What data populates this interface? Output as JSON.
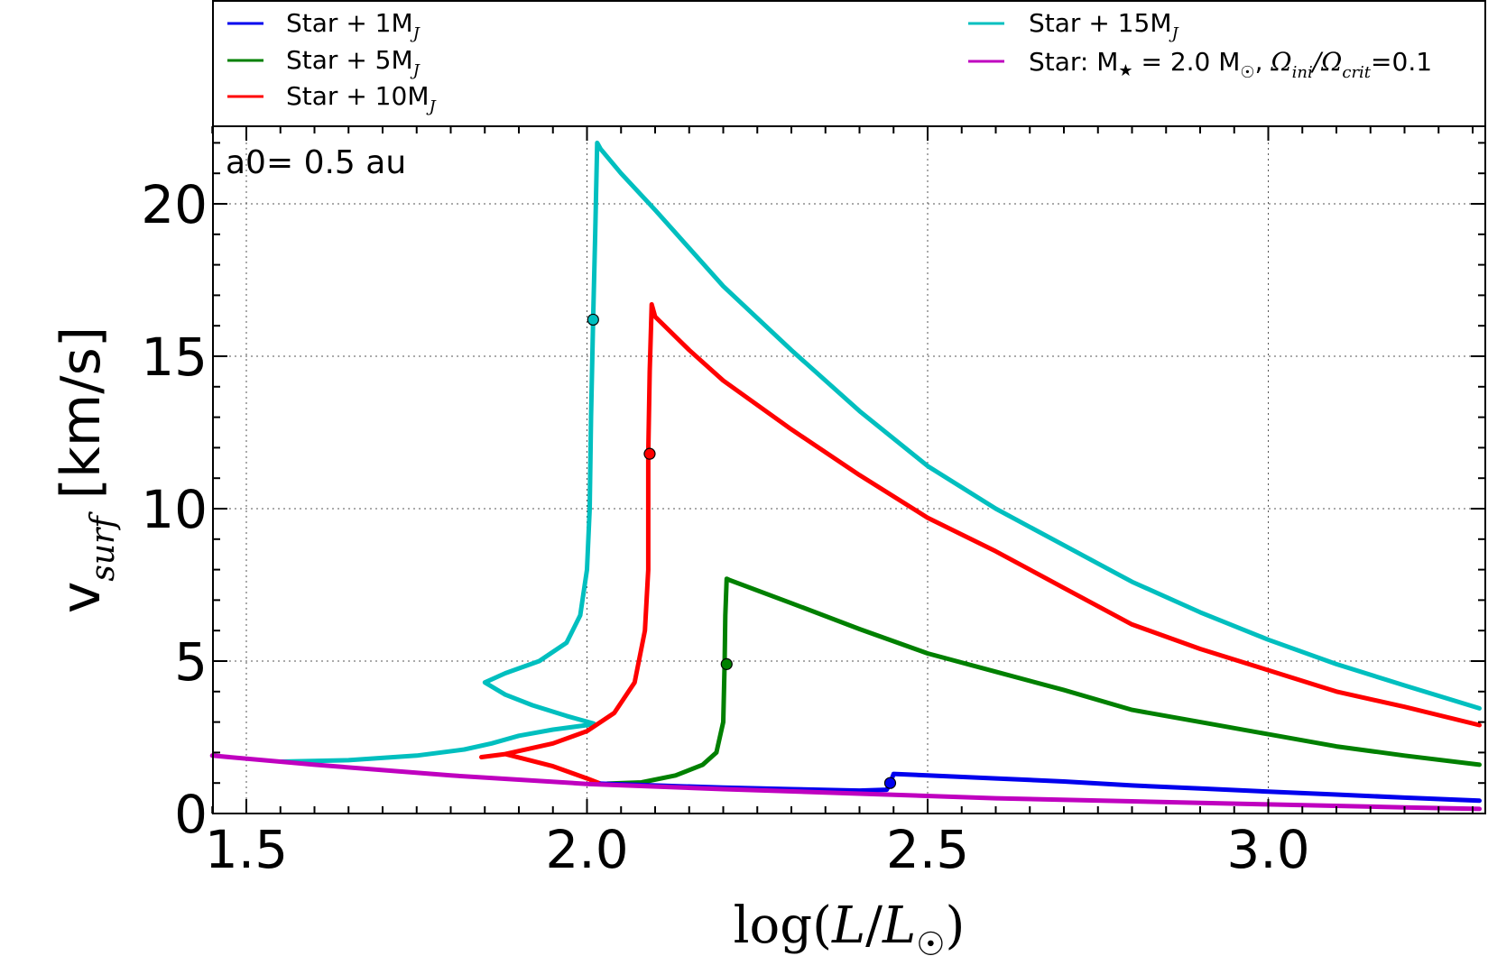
{
  "chart_data": {
    "type": "line",
    "annotation": "a0= 0.5 au",
    "xlabel": "log(L/L☉)",
    "ylabel": "v_surf [km/s]",
    "xlim": [
      1.45,
      3.33
    ],
    "ylim": [
      0,
      22.3
    ],
    "grid": true,
    "legend_position": "top",
    "x_ticks": [
      1.5,
      2.0,
      2.5,
      3.0
    ],
    "x_tick_labels": [
      "1.5",
      "2.0",
      "2.5",
      "3.0"
    ],
    "y_ticks": [
      0,
      5,
      10,
      15,
      20
    ],
    "y_tick_labels": [
      "0",
      "5",
      "10",
      "15",
      "20"
    ],
    "series": [
      {
        "name": "Star + 1M_J",
        "label": "Star + 1M",
        "label_sub": "J",
        "color": "#0000ee",
        "x": [
          2.02,
          2.1,
          2.2,
          2.3,
          2.4,
          2.44,
          2.445,
          2.45,
          2.5,
          2.6,
          2.7,
          2.8,
          2.9,
          3.0,
          3.1,
          3.2,
          3.31
        ],
        "y": [
          0.98,
          0.92,
          0.85,
          0.8,
          0.75,
          0.78,
          1.0,
          1.3,
          1.25,
          1.15,
          1.05,
          0.92,
          0.82,
          0.72,
          0.62,
          0.52,
          0.42
        ],
        "markers": [
          {
            "x": 2.445,
            "y": 1.0
          }
        ]
      },
      {
        "name": "Star + 5M_J",
        "label": "Star + 5M",
        "label_sub": "J",
        "color": "#008000",
        "x": [
          2.03,
          2.08,
          2.13,
          2.17,
          2.19,
          2.2,
          2.202,
          2.203,
          2.205,
          2.21,
          2.3,
          2.4,
          2.5,
          2.6,
          2.7,
          2.8,
          2.9,
          3.0,
          3.1,
          3.2,
          3.31
        ],
        "y": [
          0.98,
          1.02,
          1.25,
          1.6,
          2.0,
          3.0,
          4.9,
          6.5,
          7.7,
          7.65,
          6.9,
          6.05,
          5.25,
          4.65,
          4.05,
          3.4,
          3.0,
          2.6,
          2.2,
          1.9,
          1.6
        ],
        "markers": [
          {
            "x": 2.205,
            "y": 4.9
          }
        ]
      },
      {
        "name": "Star + 10M_J",
        "label": "Star + 10M",
        "label_sub": "J",
        "color": "#ff0000",
        "x": [
          2.02,
          2.0,
          1.95,
          1.88,
          1.845,
          1.88,
          1.95,
          2.0,
          2.04,
          2.07,
          2.085,
          2.09,
          2.09,
          2.092,
          2.095,
          2.1,
          2.15,
          2.2,
          2.3,
          2.4,
          2.5,
          2.6,
          2.7,
          2.8,
          2.9,
          3.0,
          3.1,
          3.2,
          3.31
        ],
        "y": [
          0.98,
          1.15,
          1.55,
          1.95,
          1.85,
          1.95,
          2.3,
          2.7,
          3.3,
          4.3,
          6.0,
          8.0,
          11.8,
          14.5,
          16.7,
          16.3,
          15.2,
          14.2,
          12.6,
          11.1,
          9.7,
          8.6,
          7.4,
          6.2,
          5.4,
          4.7,
          4.0,
          3.5,
          2.9
        ],
        "markers": [
          {
            "x": 2.092,
            "y": 11.8
          }
        ]
      },
      {
        "name": "Star + 15M_J",
        "label": "Star + 15M",
        "label_sub": "J",
        "color": "#00bfbf",
        "x": [
          1.55,
          1.65,
          1.75,
          1.82,
          1.86,
          1.9,
          1.95,
          2.0,
          2.01,
          1.97,
          1.92,
          1.88,
          1.85,
          1.88,
          1.93,
          1.97,
          1.99,
          2.0,
          2.004,
          2.006,
          2.009,
          2.012,
          2.015,
          2.02,
          2.05,
          2.1,
          2.2,
          2.3,
          2.4,
          2.5,
          2.6,
          2.7,
          2.8,
          2.9,
          3.0,
          3.1,
          3.2,
          3.31
        ],
        "y": [
          1.7,
          1.75,
          1.9,
          2.1,
          2.3,
          2.55,
          2.75,
          2.9,
          2.95,
          3.2,
          3.55,
          3.9,
          4.3,
          4.6,
          5.0,
          5.6,
          6.5,
          8.0,
          10.0,
          13.0,
          16.2,
          19.0,
          22.0,
          21.8,
          21.0,
          19.8,
          17.3,
          15.2,
          13.2,
          11.4,
          10.0,
          8.8,
          7.6,
          6.6,
          5.7,
          4.9,
          4.2,
          3.45
        ],
        "markers": [
          {
            "x": 2.009,
            "y": 16.2
          }
        ]
      },
      {
        "name": "Star: M★ = 2.0 M☉, Ωini/Ωcrit=0.1",
        "label": "Star: M",
        "label_rest": " = 2.0 M",
        "color": "#bf00bf",
        "x": [
          1.45,
          1.6,
          1.8,
          2.0,
          2.2,
          2.4,
          2.6,
          2.8,
          3.0,
          3.2,
          3.31
        ],
        "y": [
          1.9,
          1.6,
          1.25,
          0.97,
          0.8,
          0.65,
          0.5,
          0.4,
          0.3,
          0.2,
          0.15
        ],
        "markers": []
      }
    ]
  }
}
